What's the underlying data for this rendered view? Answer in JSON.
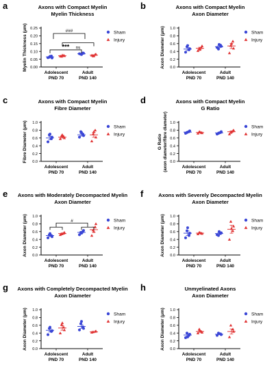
{
  "colors": {
    "sham": "#3a46d6",
    "injury": "#e03333",
    "axis": "#000000"
  },
  "legend": {
    "sham": "Sham",
    "injury": "Injury"
  },
  "groups": [
    {
      "line1": "Adolescent",
      "line2": "PND 70"
    },
    {
      "line1": "Adult",
      "line2": "PND 140"
    }
  ],
  "chart_data": [
    {
      "panel": "a",
      "type": "scatter",
      "title": "Axons with Compact Myelin",
      "subtitle": "Myelin Thickness",
      "ylabel": "Myelin Thickness (μm)",
      "ylabel2": "",
      "ylim": [
        0,
        0.25
      ],
      "yticks": [
        "0.00",
        "0.05",
        "0.10",
        "0.15",
        "0.20",
        "0.25"
      ],
      "legend": "top-right",
      "series": [
        {
          "name": "Sham",
          "values": [
            [
              0.06,
              0.07,
              0.063,
              0.058,
              0.068
            ],
            [
              0.085,
              0.09,
              0.082,
              0.088,
              0.08
            ]
          ],
          "means": [
            0.065,
            0.085
          ]
        },
        {
          "name": "Injury",
          "values": [
            [
              0.07,
              0.074,
              0.068,
              0.072,
              0.076
            ],
            [
              0.075,
              0.08,
              0.07,
              0.082,
              0.072
            ]
          ],
          "means": [
            0.072,
            0.076
          ]
        }
      ],
      "annotations": [
        {
          "label": "###",
          "type": "bracket",
          "y": 0.215
        },
        {
          "label": "ns",
          "type": "bracket",
          "y": 0.155
        },
        {
          "label": "***",
          "type": "bracket",
          "y": 0.11
        }
      ]
    },
    {
      "panel": "b",
      "type": "scatter",
      "title": "Axons with Compact Myelin",
      "subtitle": "Axon Diameter",
      "ylabel": "Axon Diameter (μm)",
      "ylabel2": "",
      "ylim": [
        0,
        1.0
      ],
      "yticks": [
        "0.0",
        "0.2",
        "0.4",
        "0.6",
        "0.8",
        "1.0"
      ],
      "legend": "top-right",
      "series": [
        {
          "name": "Sham",
          "values": [
            [
              0.38,
              0.44,
              0.52,
              0.47,
              0.55
            ],
            [
              0.5,
              0.56,
              0.46,
              0.53,
              0.58
            ]
          ],
          "means": [
            0.46,
            0.52
          ]
        },
        {
          "name": "Injury",
          "values": [
            [
              0.42,
              0.5,
              0.47,
              0.54,
              0.45
            ],
            [
              0.36,
              0.66,
              0.55,
              0.48,
              0.6
            ]
          ],
          "means": [
            0.48,
            0.54
          ]
        }
      ],
      "annotations": []
    },
    {
      "panel": "c",
      "type": "scatter",
      "title": "Axons with Compact Myelin",
      "subtitle": "Fibre Diameter",
      "ylabel": "Fibre Diameter (μm)",
      "ylabel2": "",
      "ylim": [
        0,
        1.0
      ],
      "yticks": [
        "0.0",
        "0.2",
        "0.4",
        "0.6",
        "0.8",
        "1.0"
      ],
      "legend": "top-right",
      "series": [
        {
          "name": "Sham",
          "values": [
            [
              0.5,
              0.58,
              0.68,
              0.62,
              0.7
            ],
            [
              0.62,
              0.7,
              0.76,
              0.66,
              0.74
            ]
          ],
          "means": [
            0.6,
            0.68
          ]
        },
        {
          "name": "Injury",
          "values": [
            [
              0.58,
              0.64,
              0.66,
              0.6,
              0.68
            ],
            [
              0.52,
              0.8,
              0.7,
              0.62,
              0.76
            ]
          ],
          "means": [
            0.62,
            0.68
          ]
        }
      ],
      "annotations": []
    },
    {
      "panel": "d",
      "type": "scatter",
      "title": "Axons with Compact Myelin",
      "subtitle": "G Ratio",
      "ylabel": "G Ratio",
      "ylabel2": "(axon diameter/fibre diameter)",
      "ylim": [
        0,
        1.0
      ],
      "yticks": [
        "0.0",
        "0.2",
        "0.4",
        "0.6",
        "0.8",
        "1.0"
      ],
      "legend": "top-right",
      "series": [
        {
          "name": "Sham",
          "values": [
            [
              0.72,
              0.76,
              0.74,
              0.78,
              0.75
            ],
            [
              0.7,
              0.74,
              0.72,
              0.76,
              0.73
            ]
          ],
          "means": [
            0.75,
            0.73
          ]
        },
        {
          "name": "Injury",
          "values": [
            [
              0.72,
              0.74,
              0.76,
              0.73,
              0.75
            ],
            [
              0.7,
              0.78,
              0.74,
              0.8,
              0.76
            ]
          ],
          "means": [
            0.74,
            0.76
          ]
        }
      ],
      "annotations": []
    },
    {
      "panel": "e",
      "type": "scatter",
      "title": "Axons with Moderately Decompacted Myelin",
      "subtitle": "Axon Diameter",
      "ylabel": "Axon Diameter (μm)",
      "ylabel2": "",
      "ylim": [
        0,
        1.0
      ],
      "yticks": [
        "0.0",
        "0.2",
        "0.4",
        "0.6",
        "0.8",
        "1.0"
      ],
      "legend": "top-right",
      "series": [
        {
          "name": "Sham",
          "values": [
            [
              0.44,
              0.5,
              0.52,
              0.47,
              0.55
            ],
            [
              0.52,
              0.6,
              0.58,
              0.63,
              0.56
            ]
          ],
          "means": [
            0.5,
            0.58
          ]
        },
        {
          "name": "Injury",
          "values": [
            [
              0.52,
              0.56,
              0.54,
              0.58,
              0.55
            ],
            [
              0.5,
              0.72,
              0.64,
              0.8,
              0.6
            ]
          ],
          "means": [
            0.55,
            0.65
          ]
        }
      ],
      "annotations": [
        {
          "label": "#",
          "type": "bracket",
          "y": 0.82
        }
      ]
    },
    {
      "panel": "f",
      "type": "scatter",
      "title": "Axons with Severely Decompacted Myelin",
      "subtitle": "Axon Diameter",
      "ylabel": "Axon Diameter (μm)",
      "ylabel2": "",
      "ylim": [
        0,
        1.0
      ],
      "yticks": [
        "0.0",
        "0.2",
        "0.4",
        "0.6",
        "0.8",
        "1.0"
      ],
      "legend": "top-right",
      "series": [
        {
          "name": "Sham",
          "values": [
            [
              0.44,
              0.5,
              0.62,
              0.56,
              0.7
            ],
            [
              0.52,
              0.55,
              0.5,
              0.57,
              0.6
            ]
          ],
          "means": [
            0.56,
            0.55
          ]
        },
        {
          "name": "Injury",
          "values": [
            [
              0.54,
              0.56,
              0.58,
              0.55,
              0.57
            ],
            [
              0.4,
              0.62,
              0.86,
              0.74,
              0.68
            ]
          ],
          "means": [
            0.56,
            0.66
          ]
        }
      ],
      "annotations": []
    },
    {
      "panel": "g",
      "type": "scatter",
      "title": "Axons with Completely Decompacted Myelin",
      "subtitle": "Axon Diameter",
      "ylabel": "Axon Diameter (μm)",
      "ylabel2": "",
      "ylim": [
        0,
        1.0
      ],
      "yticks": [
        "0.0",
        "0.2",
        "0.4",
        "0.6",
        "0.8",
        "1.0"
      ],
      "legend": "top-right",
      "series": [
        {
          "name": "Sham",
          "values": [
            [
              0.36,
              0.44,
              0.52,
              0.46,
              0.55
            ],
            [
              0.48,
              0.56,
              0.64,
              0.52,
              0.7
            ]
          ],
          "means": [
            0.47,
            0.57
          ]
        },
        {
          "name": "Injury",
          "values": [
            [
              0.4,
              0.55,
              0.62,
              0.48,
              0.66
            ],
            [
              0.42,
              0.44,
              0.43,
              0.45
            ]
          ],
          "means": [
            0.53,
            0.43
          ]
        }
      ],
      "annotations": []
    },
    {
      "panel": "h",
      "type": "scatter",
      "title": "Unmyelinated Axons",
      "subtitle": "Axon Diameter",
      "ylabel": "Axon Diameter (μm)",
      "ylabel2": "",
      "ylim": [
        0,
        1.0
      ],
      "yticks": [
        "0.0",
        "0.2",
        "0.4",
        "0.6",
        "0.8",
        "1.0"
      ],
      "legend": "top-right",
      "series": [
        {
          "name": "Sham",
          "values": [
            [
              0.28,
              0.34,
              0.4,
              0.37,
              0.3
            ],
            [
              0.34,
              0.38,
              0.4,
              0.36
            ]
          ],
          "means": [
            0.35,
            0.37
          ]
        },
        {
          "name": "Injury",
          "values": [
            [
              0.4,
              0.44,
              0.5,
              0.42,
              0.46
            ],
            [
              0.3,
              0.5,
              0.6,
              0.44
            ]
          ],
          "means": [
            0.44,
            0.44
          ]
        }
      ],
      "annotations": []
    }
  ]
}
